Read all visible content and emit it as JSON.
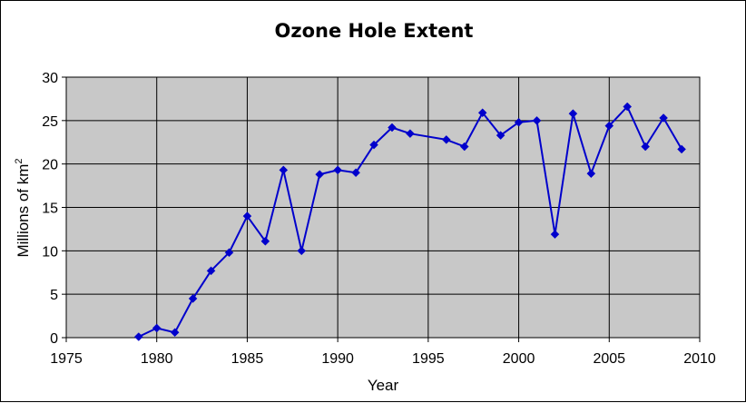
{
  "chart_data": {
    "type": "line",
    "title": "Ozone Hole Extent",
    "xlabel": "Year",
    "ylabel": "Millions of km",
    "ylabel_superscript": "2",
    "xlim": [
      1975,
      2010
    ],
    "ylim": [
      0,
      30
    ],
    "x_ticks": [
      1975,
      1980,
      1985,
      1990,
      1995,
      2000,
      2005,
      2010
    ],
    "y_ticks": [
      0,
      5,
      10,
      15,
      20,
      25,
      30
    ],
    "grid": true,
    "legend": "none",
    "plot_background": "#c8c8c8",
    "series_color": "#0000cc",
    "marker": "diamond",
    "x": [
      1979,
      1980,
      1981,
      1982,
      1983,
      1984,
      1985,
      1986,
      1987,
      1988,
      1989,
      1990,
      1991,
      1992,
      1993,
      1994,
      1996,
      1997,
      1998,
      1999,
      2000,
      2001,
      2002,
      2003,
      2004,
      2005,
      2006,
      2007,
      2008,
      2009
    ],
    "values": [
      0.1,
      1.1,
      0.6,
      4.5,
      7.7,
      9.8,
      14.0,
      11.1,
      19.3,
      10.0,
      18.8,
      19.3,
      19.0,
      22.2,
      24.2,
      23.5,
      22.8,
      22.0,
      25.9,
      23.3,
      24.8,
      25.0,
      11.9,
      25.8,
      18.9,
      24.4,
      26.6,
      22.0,
      25.3,
      21.7
    ]
  }
}
